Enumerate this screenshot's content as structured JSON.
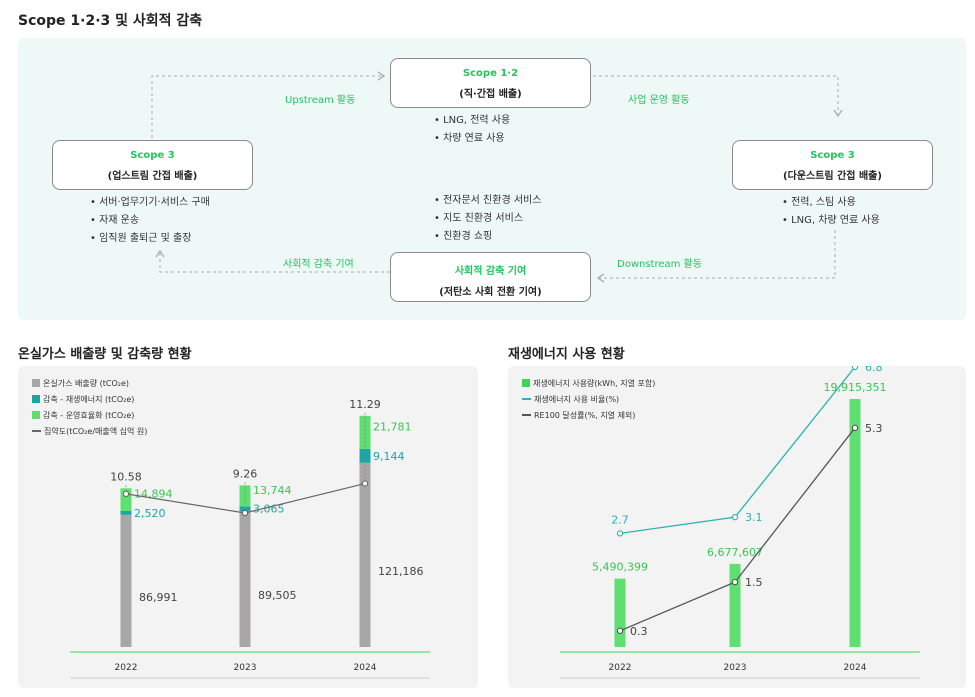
{
  "page_title": "Scope 1·2·3 및 사회적 감축",
  "diagram": {
    "nodes": {
      "scope12": {
        "title": "Scope 1·2",
        "sub": "(직·간접 배출)"
      },
      "scope3_up": {
        "title": "Scope 3",
        "sub": "(업스트림 간접 배출)"
      },
      "scope3_down": {
        "title": "Scope 3",
        "sub": "(다운스트림 간접 배출)"
      },
      "social": {
        "title": "사회적 감축 기여",
        "sub": "(저탄소 사회 전환 기여)"
      }
    },
    "lists": {
      "scope12": [
        "LNG, 전력 사용",
        "차량 연료 사용"
      ],
      "upstream": [
        "서버·업무기기·서비스 구매",
        "자재 운송",
        "임직원 출퇴근 및 출장"
      ],
      "downstream": [
        "전력, 스팀 사용",
        "LNG, 차량 연료 사용"
      ],
      "social": [
        "전자문서 친환경 서비스",
        "지도 친환경 서비스",
        "친환경 쇼핑"
      ]
    },
    "edges": {
      "upstream": "Upstream 활동",
      "operations": "사업 운영 활동",
      "downstream": "Downstream 활동",
      "social": "사회적 감축 기여"
    }
  },
  "chart1_title": "온실가스 배출량 및 감축량 현황",
  "chart2_title": "재생에너지 사용 현황",
  "legend1": [
    {
      "label": "온실가스 배출량 (tCO₂e)",
      "color": "#a8a6a6",
      "kind": "box"
    },
    {
      "label": "감축 - 재생에너지 (tCO₂e)",
      "color": "#1aa7a3",
      "kind": "box"
    },
    {
      "label": "감축 - 운영효율화 (tCO₂e)",
      "color": "#5ee070",
      "kind": "box"
    },
    {
      "label": "집약도(tCO₂e/매출액 십억 원)",
      "color": "#666666",
      "kind": "line"
    }
  ],
  "legend2": [
    {
      "label": "재생에너지 사용량(kWh, 지열 포함)",
      "color": "#3fd35a",
      "kind": "box"
    },
    {
      "label": "재생에너지 사용 비율(%)",
      "color": "#2bb3b0",
      "kind": "line"
    },
    {
      "label": "RE100 달성률(%, 지열 제외)",
      "color": "#555555",
      "kind": "line"
    }
  ],
  "chart_data": [
    {
      "type": "bar",
      "title": "온실가스 배출량 및 감축량 현황",
      "categories": [
        "2022",
        "2023",
        "2024"
      ],
      "series": [
        {
          "name": "온실가스 배출량 (tCO₂e)",
          "values": [
            86991,
            89505,
            121186
          ],
          "labels": [
            "86,991",
            "89,505",
            "121,186"
          ],
          "color": "#a8a6a6"
        },
        {
          "name": "감축 - 재생에너지 (tCO₂e)",
          "values": [
            2520,
            3065,
            9144
          ],
          "labels": [
            "2,520",
            "3,065",
            "9,144"
          ],
          "color": "#1aa7a3"
        },
        {
          "name": "감축 - 운영효율화 (tCO₂e)",
          "values": [
            14894,
            13744,
            21781
          ],
          "labels": [
            "14,894",
            "13,744",
            "21,781"
          ],
          "color": "#5ee070"
        },
        {
          "name": "집약도(tCO₂e/매출액 십억 원)",
          "values": [
            10.58,
            9.26,
            11.29
          ],
          "labels": [
            "10.58",
            "9.26",
            "11.29"
          ],
          "color": "#666666"
        }
      ],
      "stacked": true
    },
    {
      "type": "bar",
      "title": "재생에너지 사용 현황",
      "categories": [
        "2022",
        "2023",
        "2024"
      ],
      "series": [
        {
          "name": "재생에너지 사용량(kWh, 지열 포함)",
          "values": [
            5490399,
            6677607,
            19915351
          ],
          "labels": [
            "5,490,399",
            "6,677,607",
            "19,915,351"
          ],
          "color": "#5ee070"
        },
        {
          "name": "재생에너지 사용 비율(%)",
          "values": [
            2.7,
            3.1,
            6.8
          ],
          "labels": [
            "2.7",
            "3.1",
            "6.8"
          ],
          "color": "#2bb3b0"
        },
        {
          "name": "RE100 달성률(%, 지열 제외)",
          "values": [
            0.3,
            1.5,
            5.3
          ],
          "labels": [
            "0.3",
            "1.5",
            "5.3"
          ],
          "color": "#555555"
        }
      ]
    }
  ]
}
